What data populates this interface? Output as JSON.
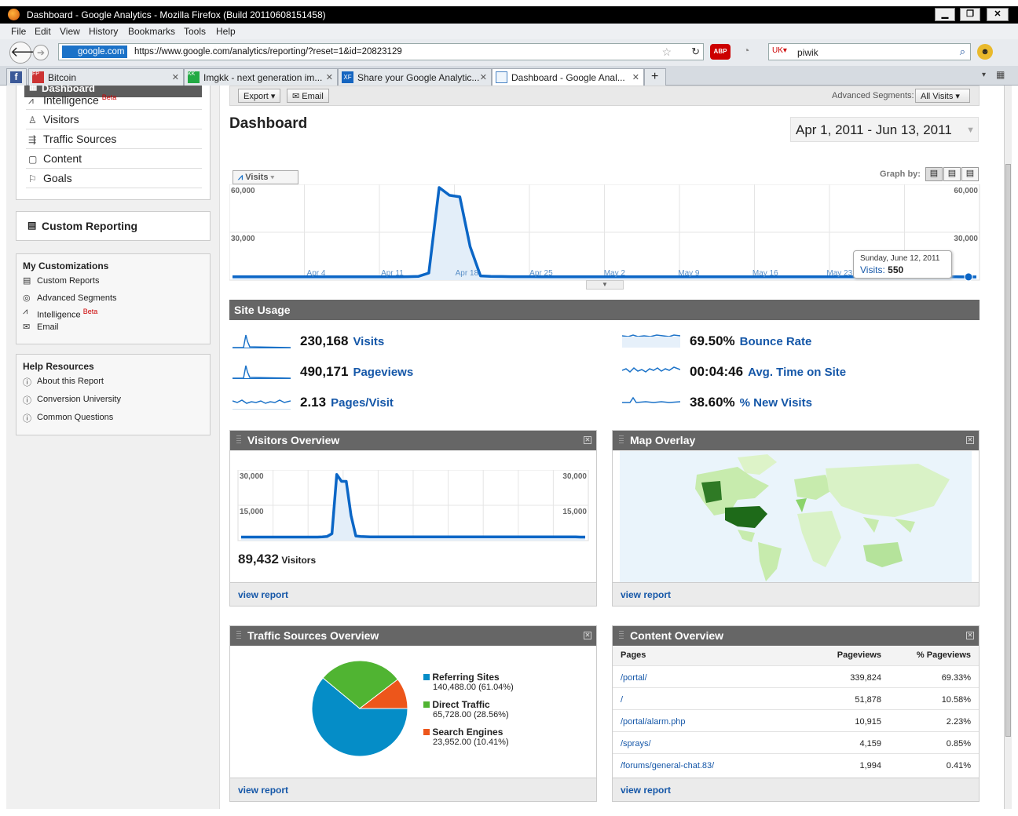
{
  "window": {
    "title": "Dashboard - Google Analytics - Mozilla Firefox (Build 20110608151458)"
  },
  "menu": [
    "File",
    "Edit",
    "View",
    "History",
    "Bookmarks",
    "Tools",
    "Help"
  ],
  "address": {
    "site": "google.com",
    "url": "https://www.google.com/analytics/reporting/?reset=1&id=20823129"
  },
  "search": {
    "value": "piwik"
  },
  "tabs": [
    {
      "label": "Bitcoin"
    },
    {
      "label": "Imgkk - next generation im..."
    },
    {
      "label": "Share your Google Analytic..."
    },
    {
      "label": "Dashboard - Google Anal..."
    }
  ],
  "sidebar": {
    "dashboard": "Dashboard",
    "items": [
      {
        "label": "Intelligence",
        "badge": "Beta"
      },
      {
        "label": "Visitors"
      },
      {
        "label": "Traffic Sources"
      },
      {
        "label": "Content"
      },
      {
        "label": "Goals"
      }
    ],
    "custom_reporting": "Custom Reporting",
    "my_customizations": {
      "title": "My Customizations",
      "items": [
        "Custom Reports",
        "Advanced Segments",
        "Intelligence",
        "Email"
      ],
      "beta": "Beta"
    },
    "help": {
      "title": "Help Resources",
      "items": [
        "About this Report",
        "Conversion University",
        "Common Questions"
      ]
    }
  },
  "toolbar": {
    "export": "Export",
    "email": "Email",
    "segments_label": "Advanced Segments:",
    "segments_value": "All Visits"
  },
  "header": {
    "title": "Dashboard",
    "date_range": "Apr 1, 2011 - Jun 13, 2011"
  },
  "graph": {
    "metric_button": "Visits",
    "graph_by": "Graph by:",
    "tooltip_date": "Sunday, June 12, 2011",
    "tooltip_label": "Visits:",
    "tooltip_value": "550"
  },
  "chart_data": [
    {
      "type": "area",
      "name": "main-visits",
      "ylim": [
        0,
        60000
      ],
      "yticks": [
        "60,000",
        "30,000"
      ],
      "xlabels": [
        "Apr 4",
        "Apr 11",
        "Apr 18",
        "Apr 25",
        "May 2",
        "May 9",
        "May 16",
        "May 23",
        "May 30"
      ],
      "values": [
        600,
        600,
        600,
        600,
        600,
        600,
        600,
        600,
        600,
        600,
        600,
        600,
        600,
        600,
        600,
        600,
        600,
        700,
        900,
        3000,
        58000,
        53000,
        52000,
        20000,
        1200,
        900,
        800,
        700,
        700,
        700,
        650,
        650,
        650,
        650,
        650,
        650,
        600,
        650,
        650,
        650,
        650,
        650,
        650,
        650,
        650,
        600,
        650,
        650,
        650,
        650,
        600,
        650,
        650,
        600,
        600,
        600,
        650,
        600,
        600,
        600,
        600,
        600,
        600,
        600,
        600,
        600,
        650,
        600,
        600,
        600,
        600,
        550,
        550
      ]
    },
    {
      "type": "area",
      "name": "visitors-overview",
      "ylim": [
        0,
        30000
      ],
      "yticks": [
        "30,000",
        "15,000"
      ],
      "values": [
        500,
        500,
        500,
        500,
        500,
        500,
        500,
        500,
        500,
        500,
        500,
        500,
        500,
        500,
        500,
        500,
        500,
        600,
        800,
        2000,
        28000,
        25000,
        25000,
        10000,
        1000,
        800,
        700,
        600,
        600,
        600,
        600,
        600,
        600,
        600,
        600,
        600,
        600,
        600,
        600,
        600,
        600,
        600,
        600,
        600,
        600,
        600,
        600,
        600,
        600,
        600,
        600,
        600,
        600,
        600,
        600,
        600,
        600,
        600,
        600,
        600,
        600,
        600,
        600,
        600,
        600,
        600,
        600,
        600,
        600,
        600,
        600,
        500,
        500
      ]
    },
    {
      "type": "pie",
      "name": "traffic-sources",
      "series": [
        {
          "name": "Referring Sites",
          "value": 140488.0,
          "label": "140,488.00 (61.04%)",
          "color": "#058dc7"
        },
        {
          "name": "Direct Traffic",
          "value": 65728.0,
          "label": "65,728.00 (28.56%)",
          "color": "#50b432"
        },
        {
          "name": "Search Engines",
          "value": 23952.0,
          "label": "23,952.00 (10.41%)",
          "color": "#ed561b"
        }
      ]
    }
  ],
  "site_usage": {
    "title": "Site Usage",
    "metrics": [
      {
        "value": "230,168",
        "label": "Visits"
      },
      {
        "value": "490,171",
        "label": "Pageviews"
      },
      {
        "value": "2.13",
        "label": "Pages/Visit"
      },
      {
        "value": "69.50%",
        "label": "Bounce Rate"
      },
      {
        "value": "00:04:46",
        "label": "Avg. Time on Site"
      },
      {
        "value": "38.60%",
        "label": "% New Visits"
      }
    ]
  },
  "visitors_overview": {
    "title": "Visitors Overview",
    "value": "89,432",
    "label": "Visitors",
    "link": "view report"
  },
  "map_overlay": {
    "title": "Map Overlay",
    "link": "view report"
  },
  "traffic_sources": {
    "title": "Traffic Sources Overview",
    "link": "view report"
  },
  "content_overview": {
    "title": "Content Overview",
    "link": "view report",
    "headers": [
      "Pages",
      "Pageviews",
      "% Pageviews"
    ],
    "rows": [
      {
        "page": "/portal/",
        "views": "339,824",
        "pct": "69.33%"
      },
      {
        "page": "/",
        "views": "51,878",
        "pct": "10.58%"
      },
      {
        "page": "/portal/alarm.php",
        "views": "10,915",
        "pct": "2.23%"
      },
      {
        "page": "/sprays/",
        "views": "4,159",
        "pct": "0.85%"
      },
      {
        "page": "/forums/general-chat.83/",
        "views": "1,994",
        "pct": "0.41%"
      }
    ]
  }
}
